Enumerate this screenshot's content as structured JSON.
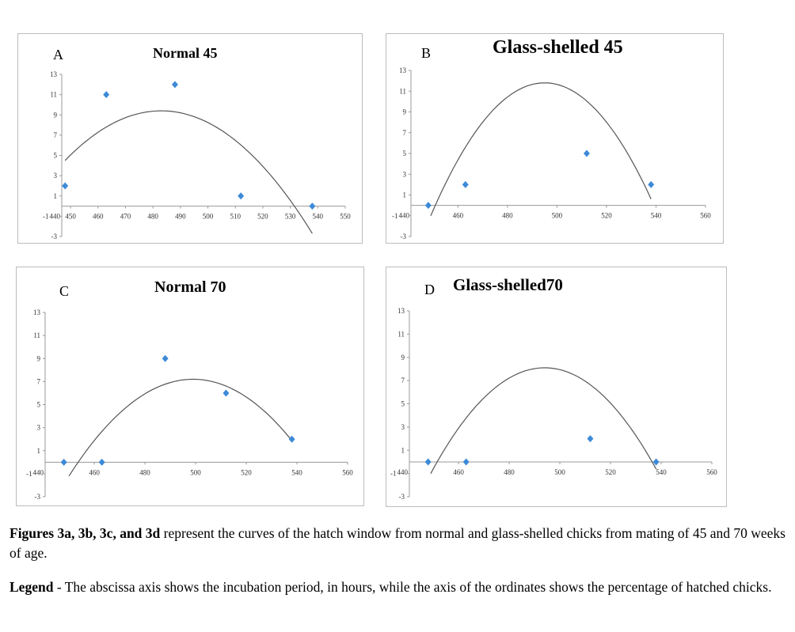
{
  "chart_data": [
    {
      "type": "scatter",
      "panel": "A",
      "title": "Normal 45",
      "x": [
        448,
        463,
        488,
        512,
        538
      ],
      "y": [
        2,
        11,
        12,
        1,
        0
      ],
      "xlim": [
        446.8,
        550
      ],
      "ylim": [
        -3,
        13
      ],
      "xticks": [
        440,
        450,
        460,
        470,
        480,
        490,
        500,
        510,
        520,
        530,
        540,
        550
      ],
      "yticks": [
        -3,
        -1,
        1,
        3,
        5,
        7,
        9,
        11,
        13
      ],
      "trendline": {
        "type": "polynomial-2",
        "vertex_x": 483,
        "vertex_y": 9.4,
        "a": -0.004,
        "x_range": [
          448,
          538
        ]
      },
      "marker_color": "#3d8ad8"
    },
    {
      "type": "scatter",
      "panel": "B",
      "title": "Glass-shelled 45",
      "x": [
        448,
        463,
        512,
        538
      ],
      "y": [
        0,
        2,
        5,
        2
      ],
      "xlim": [
        441,
        560
      ],
      "ylim": [
        -3,
        13
      ],
      "xticks": [
        440,
        460,
        480,
        500,
        520,
        540,
        560
      ],
      "yticks": [
        -3,
        -1,
        1,
        3,
        5,
        7,
        9,
        11,
        13
      ],
      "trendline": {
        "type": "polynomial-2",
        "vertex_x": 495,
        "vertex_y": 11.8,
        "a": -0.00605,
        "x_range": [
          449,
          538
        ]
      },
      "marker_color": "#3d8ad8"
    },
    {
      "type": "scatter",
      "panel": "C",
      "title": "Normal 70",
      "x": [
        448,
        463,
        488,
        512,
        538
      ],
      "y": [
        0,
        0,
        9,
        6,
        2
      ],
      "xlim": [
        440.6,
        560
      ],
      "ylim": [
        -3,
        13
      ],
      "xticks": [
        440,
        460,
        480,
        500,
        520,
        540,
        560
      ],
      "yticks": [
        -3,
        -1,
        1,
        3,
        5,
        7,
        9,
        11,
        13
      ],
      "trendline": {
        "type": "polynomial-2",
        "vertex_x": 499,
        "vertex_y": 7.2,
        "a": -0.0035,
        "x_range": [
          450,
          538
        ]
      },
      "marker_color": "#3d8ad8"
    },
    {
      "type": "scatter",
      "panel": "D",
      "title": "Glass-shelled70",
      "x": [
        448,
        463,
        512,
        538
      ],
      "y": [
        0,
        0,
        2,
        0
      ],
      "xlim": [
        440.6,
        560
      ],
      "ylim": [
        -3,
        13
      ],
      "xticks": [
        440,
        460,
        480,
        500,
        520,
        540,
        560
      ],
      "yticks": [
        -3,
        -1,
        1,
        3,
        5,
        7,
        9,
        11,
        13
      ],
      "trendline": {
        "type": "polynomial-2",
        "vertex_x": 494,
        "vertex_y": 8.1,
        "a": -0.0045,
        "x_range": [
          449,
          538
        ]
      },
      "marker_color": "#3d8ad8"
    }
  ],
  "caption": {
    "fig_ref": "Figures 3a, 3b, 3c, and 3d",
    "text1": " represent the curves of the hatch window from normal and glass-shelled chicks from mating of 45 and 70 weeks of age.",
    "legend_label": "Legend",
    "text2": " - The abscissa axis shows the incubation period, in hours, while the axis of the ordinates shows the percentage of hatched chicks."
  }
}
